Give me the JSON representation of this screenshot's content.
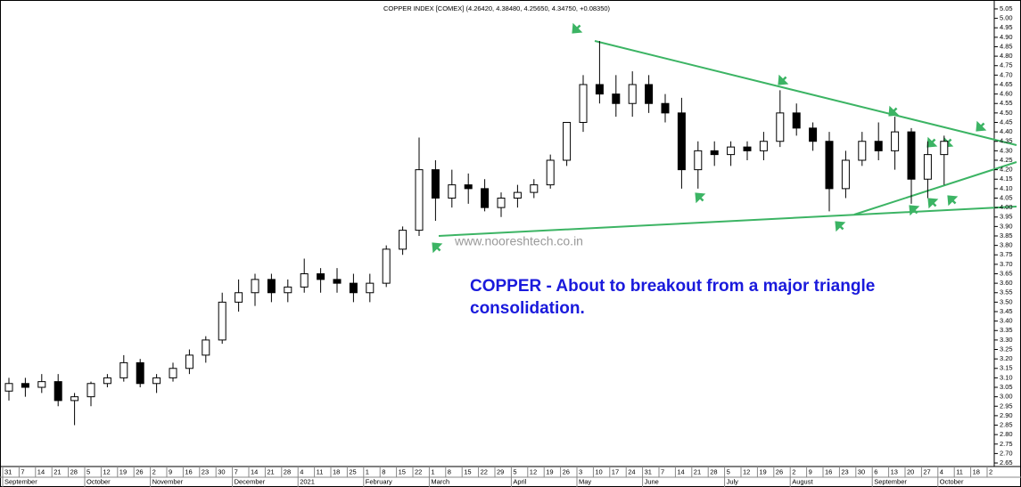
{
  "chart_data": {
    "type": "candlestick",
    "title": "COPPER INDEX [COMEX] (4.26420, 4.38480, 4.25650, 4.34750, +0.08350)",
    "watermark": "www.nooreshtech.co.in",
    "annotation": [
      "COPPER - About to breakout from a major triangle",
      "consolidation."
    ],
    "categories": [
      "31",
      "7",
      "14",
      "21",
      "28",
      "5",
      "12",
      "19",
      "26",
      "2",
      "9",
      "16",
      "23",
      "30",
      "7",
      "14",
      "21",
      "28",
      "4",
      "11",
      "18",
      "25",
      "1",
      "8",
      "15",
      "22",
      "1",
      "8",
      "15",
      "22",
      "29",
      "5",
      "12",
      "19",
      "26",
      "3",
      "10",
      "17",
      "24",
      "31",
      "7",
      "14",
      "21",
      "28",
      "5",
      "12",
      "19",
      "26",
      "2",
      "9",
      "16",
      "23",
      "30",
      "6",
      "13",
      "20",
      "27",
      "4",
      "11",
      "18",
      "2"
    ],
    "month_labels": [
      "September",
      null,
      null,
      null,
      null,
      "October",
      null,
      null,
      null,
      "November",
      null,
      null,
      null,
      null,
      "December",
      null,
      null,
      null,
      "2021",
      null,
      null,
      null,
      "February",
      null,
      null,
      null,
      "March",
      null,
      null,
      null,
      null,
      "April",
      null,
      null,
      null,
      "May",
      null,
      null,
      null,
      "June",
      null,
      null,
      null,
      null,
      "July",
      null,
      null,
      null,
      "August",
      null,
      null,
      null,
      null,
      "September",
      null,
      null,
      null,
      "October",
      null,
      null,
      null
    ],
    "open": [
      3.03,
      3.07,
      3.05,
      3.08,
      2.98,
      3.0,
      3.07,
      3.1,
      3.18,
      3.07,
      3.1,
      3.15,
      3.22,
      3.3,
      3.5,
      3.55,
      3.62,
      3.55,
      3.58,
      3.65,
      3.62,
      3.6,
      3.55,
      3.6,
      3.78,
      3.88,
      4.2,
      4.05,
      4.12,
      4.1,
      4.0,
      4.05,
      4.08,
      4.12,
      4.25,
      4.45,
      4.65,
      4.6,
      4.55,
      4.65,
      4.55,
      4.5,
      4.2,
      4.3,
      4.28,
      4.32,
      4.3,
      4.35,
      4.5,
      4.42,
      4.35,
      4.1,
      4.25,
      4.35,
      4.3,
      4.4,
      4.15,
      4.28,
      null,
      null,
      null
    ],
    "high": [
      3.1,
      3.1,
      3.12,
      3.12,
      3.02,
      3.08,
      3.12,
      3.22,
      3.2,
      3.12,
      3.18,
      3.25,
      3.32,
      3.55,
      3.62,
      3.65,
      3.65,
      3.62,
      3.73,
      3.68,
      3.68,
      3.65,
      3.65,
      3.8,
      3.9,
      4.37,
      4.25,
      4.2,
      4.18,
      4.15,
      4.08,
      4.12,
      4.15,
      4.28,
      4.45,
      4.7,
      4.88,
      4.7,
      4.72,
      4.7,
      4.6,
      4.58,
      4.35,
      4.35,
      4.35,
      4.35,
      4.4,
      4.62,
      4.55,
      4.45,
      4.4,
      4.3,
      4.4,
      4.45,
      4.48,
      4.42,
      4.35,
      4.38,
      null,
      null,
      null
    ],
    "low": [
      2.98,
      3.0,
      3.02,
      2.95,
      2.85,
      2.95,
      3.05,
      3.08,
      3.05,
      3.02,
      3.08,
      3.12,
      3.18,
      3.28,
      3.45,
      3.48,
      3.5,
      3.5,
      3.55,
      3.55,
      3.55,
      3.5,
      3.5,
      3.58,
      3.75,
      3.85,
      3.93,
      4.0,
      4.02,
      3.98,
      3.95,
      4.0,
      4.05,
      4.1,
      4.22,
      4.4,
      4.55,
      4.48,
      4.48,
      4.5,
      4.45,
      4.1,
      4.1,
      4.22,
      4.22,
      4.25,
      4.25,
      4.32,
      4.38,
      4.3,
      3.98,
      4.05,
      4.22,
      4.25,
      4.2,
      4.02,
      4.05,
      4.12,
      null,
      null,
      null
    ],
    "close": [
      3.07,
      3.05,
      3.08,
      2.98,
      3.0,
      3.07,
      3.1,
      3.18,
      3.07,
      3.1,
      3.15,
      3.22,
      3.3,
      3.5,
      3.55,
      3.62,
      3.55,
      3.58,
      3.65,
      3.62,
      3.6,
      3.55,
      3.6,
      3.78,
      3.88,
      4.2,
      4.05,
      4.12,
      4.1,
      4.0,
      4.05,
      4.08,
      4.12,
      4.25,
      4.45,
      4.65,
      4.6,
      4.55,
      4.65,
      4.55,
      4.5,
      4.2,
      4.3,
      4.28,
      4.32,
      4.3,
      4.35,
      4.5,
      4.42,
      4.35,
      4.1,
      4.25,
      4.35,
      4.3,
      4.4,
      4.15,
      4.28,
      4.35,
      null,
      null,
      null
    ],
    "up_color": "#ffffff",
    "down_color": "#000000",
    "line_color": "#000000",
    "ylim": [
      2.62,
      5.08
    ],
    "yticks": [
      2.65,
      {
        "value": 2.7,
        "label": "2.70"
      },
      2.75,
      {
        "value": 2.8,
        "label": "2.80"
      },
      2.85,
      {
        "value": 2.9,
        "label": "2.90"
      },
      2.95,
      {
        "value": 3,
        "label": "3.00"
      },
      3.05,
      {
        "value": 3.1,
        "label": "3.10"
      },
      3.15,
      {
        "value": 3.2,
        "label": "3.20"
      },
      3.25,
      {
        "value": 3.3,
        "label": "3.30"
      },
      3.35,
      {
        "value": 3.4,
        "label": "3.40"
      },
      3.45,
      {
        "value": 3.5,
        "label": "3.50"
      },
      3.55,
      {
        "value": 3.6,
        "label": "3.60"
      },
      3.65,
      {
        "value": 3.7,
        "label": "3.70"
      },
      3.75,
      {
        "value": 3.8,
        "label": "3.80"
      },
      3.85,
      {
        "value": 3.9,
        "label": "3.90"
      },
      3.95,
      {
        "value": 4,
        "label": "4.00"
      },
      4.05,
      {
        "value": 4.1,
        "label": "4.10"
      },
      4.15,
      {
        "value": 4.2,
        "label": "4.20"
      },
      4.25,
      {
        "value": 4.3,
        "label": "4.30"
      },
      4.35,
      {
        "value": 4.4,
        "label": "4.40"
      },
      4.45,
      {
        "value": 4.5,
        "label": "4.50"
      },
      4.55,
      {
        "value": 4.6,
        "label": "4.60"
      },
      4.65,
      {
        "value": 4.7,
        "label": "4.70"
      },
      4.75,
      {
        "value": 4.8,
        "label": "4.80"
      },
      4.85,
      {
        "value": 4.9,
        "label": "4.90"
      },
      4.95,
      {
        "value": 5,
        "label": "5.00"
      },
      5.05
    ]
  }
}
